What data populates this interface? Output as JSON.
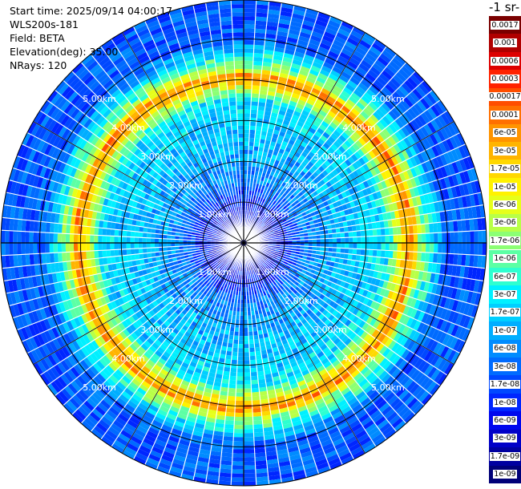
{
  "header": {
    "start_time": "Start time: 2025/09/14 04:00:17",
    "instrument": "WLS200s-181",
    "field": "Field: BETA",
    "elevation": "Elevation(deg): 35.00",
    "nrays": "NRays: 120"
  },
  "colorbar": {
    "title": "-1 sr-",
    "levels": [
      "0.0017",
      "0.001",
      "0.0006",
      "0.0003",
      "0.00017",
      "0.0001",
      "6e-05",
      "3e-05",
      "1.7e-05",
      "1e-05",
      "6e-06",
      "3e-06",
      "1.7e-06",
      "1e-06",
      "6e-07",
      "3e-07",
      "1.7e-07",
      "1e-07",
      "6e-08",
      "3e-08",
      "1.7e-08",
      "1e-08",
      "6e-09",
      "3e-09",
      "1.7e-09",
      "1e-09"
    ],
    "colors": [
      "#7a0000",
      "#b00000",
      "#dd0000",
      "#ff2200",
      "#ff4e00",
      "#ff7000",
      "#ff9400",
      "#ffb400",
      "#ffd800",
      "#fff200",
      "#e6ff1a",
      "#b8ff48",
      "#8cff74",
      "#5cffa4",
      "#2effd0",
      "#00f0ff",
      "#00cfff",
      "#00aeff",
      "#008cff",
      "#006bff",
      "#0048ff",
      "#0026ff",
      "#0008ee",
      "#0000c8",
      "#0000a0",
      "#000078"
    ]
  },
  "range_rings": {
    "labels": [
      "1.00km",
      "2.00km",
      "3.00km",
      "4.00km",
      "5.00km"
    ]
  },
  "chart_data": {
    "type": "heatmap",
    "title": "",
    "projection": "polar PPI scan",
    "nrays": 120,
    "elevation_deg": 35.0,
    "range_rings_km": [
      1,
      2,
      3,
      4,
      5
    ],
    "max_range_km": 5.0,
    "profile": [
      {
        "range_km": 0.0,
        "beta": "3e-09"
      },
      {
        "range_km": 1.0,
        "beta": "1e-08"
      },
      {
        "range_km": 1.5,
        "beta": "6e-08"
      },
      {
        "range_km": 2.5,
        "beta": "1.7e-07"
      },
      {
        "range_km": 3.5,
        "beta": "3e-07"
      },
      {
        "range_km": 3.9,
        "beta": "1.7e-05"
      },
      {
        "range_km": 4.1,
        "beta": "0.0001"
      },
      {
        "range_km": 4.3,
        "beta": "3e-06"
      },
      {
        "range_km": 5.0,
        "beta": "3e-08"
      }
    ]
  }
}
